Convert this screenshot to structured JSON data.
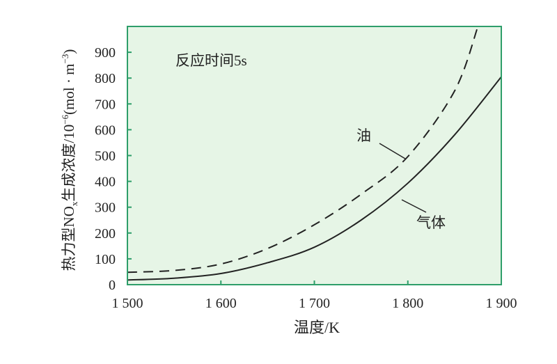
{
  "chart_data": {
    "type": "line",
    "title": "",
    "xlabel": "温度/K",
    "ylabel": "热力型NOx生成浓度/10⁻⁶(mol·m⁻³)",
    "ylabel_parts": {
      "pre": "热力型NO",
      "sub": "x",
      "mid": "生成浓度/10",
      "sup1": "−6",
      "mid2": "(mol · m",
      "sup2": "−3",
      "post": ")"
    },
    "xlim": [
      1500,
      1900
    ],
    "ylim": [
      0,
      1000
    ],
    "x_ticks": [
      1500,
      1600,
      1700,
      1800,
      1900
    ],
    "x_tick_labels": [
      "1 500",
      "1 600",
      "1 700",
      "1 800",
      "1 900"
    ],
    "y_ticks": [
      0,
      100,
      200,
      300,
      400,
      500,
      600,
      700,
      800,
      900
    ],
    "y_tick_labels": [
      "0",
      "100",
      "200",
      "300",
      "400",
      "500",
      "600",
      "700",
      "800",
      "900"
    ],
    "grid": false,
    "background_color": "#e6f5e6",
    "frame_color": "#2e9e6a",
    "annotation": "反应时间5s",
    "series": [
      {
        "name": "油",
        "style": "dashed",
        "color": "#222222",
        "x": [
          1500,
          1550,
          1600,
          1650,
          1700,
          1750,
          1800,
          1850,
          1875
        ],
        "y": [
          48,
          55,
          80,
          140,
          232,
          350,
          496,
          750,
          1000
        ]
      },
      {
        "name": "气体",
        "style": "solid",
        "color": "#222222",
        "x": [
          1500,
          1550,
          1600,
          1650,
          1700,
          1750,
          1800,
          1850,
          1900
        ],
        "y": [
          18,
          25,
          43,
          85,
          145,
          250,
          393,
          580,
          805
        ]
      }
    ]
  }
}
